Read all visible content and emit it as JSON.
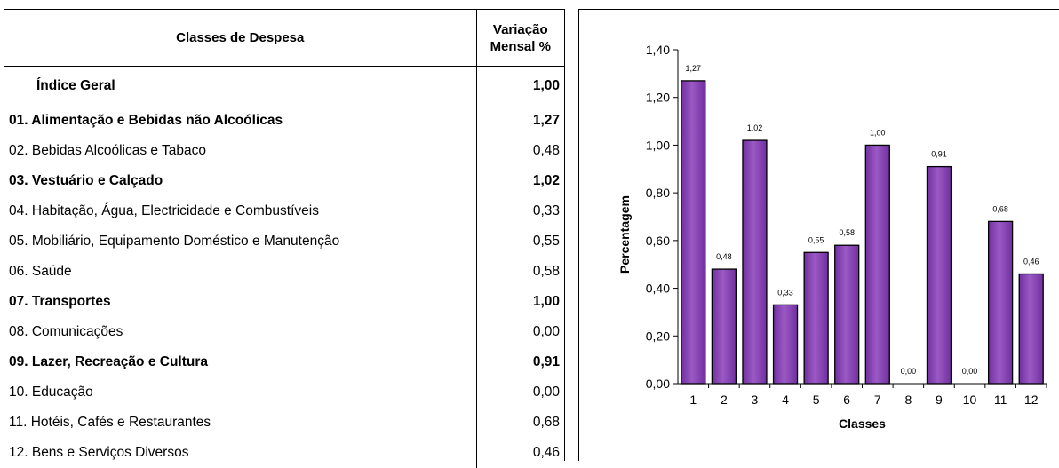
{
  "table": {
    "header_class": "Classes de Despesa",
    "header_var_line1": "Variação",
    "header_var_line2": "Mensal %",
    "rows": [
      {
        "label": "Índice Geral",
        "value": "1,00",
        "bold": true,
        "indent": true
      },
      {
        "label": "01. Alimentação e Bebidas não Alcoólicas",
        "value": "1,27",
        "bold": true,
        "indent": false
      },
      {
        "label": "02. Bebidas Alcoólicas e Tabaco",
        "value": "0,48",
        "bold": false,
        "indent": false
      },
      {
        "label": "03. Vestuário e Calçado",
        "value": "1,02",
        "bold": true,
        "indent": false
      },
      {
        "label": "04. Habitação, Água, Electricidade e Combustíveis",
        "value": "0,33",
        "bold": false,
        "indent": false
      },
      {
        "label": "05. Mobiliário, Equipamento Doméstico e Manutenção",
        "value": "0,55",
        "bold": false,
        "indent": false
      },
      {
        "label": "06. Saúde",
        "value": "0,58",
        "bold": false,
        "indent": false
      },
      {
        "label": "07. Transportes",
        "value": "1,00",
        "bold": true,
        "indent": false
      },
      {
        "label": "08. Comunicações",
        "value": "0,00",
        "bold": false,
        "indent": false
      },
      {
        "label": "09. Lazer, Recreação e Cultura",
        "value": "0,91",
        "bold": true,
        "indent": false
      },
      {
        "label": "10. Educação",
        "value": "0,00",
        "bold": false,
        "indent": false
      },
      {
        "label": "11. Hotéis, Cafés e Restaurantes",
        "value": "0,68",
        "bold": false,
        "indent": false
      },
      {
        "label": "12. Bens e Serviços Diversos",
        "value": "0,46",
        "bold": false,
        "indent": false
      }
    ]
  },
  "chart_data": {
    "type": "bar",
    "categories": [
      "1",
      "2",
      "3",
      "4",
      "5",
      "6",
      "7",
      "8",
      "9",
      "10",
      "11",
      "12"
    ],
    "values": [
      1.27,
      0.48,
      1.02,
      0.33,
      0.55,
      0.58,
      1.0,
      0.0,
      0.91,
      0.0,
      0.68,
      0.46
    ],
    "value_labels": [
      "1,27",
      "0,48",
      "1,02",
      "0,33",
      "0,55",
      "0,58",
      "1,00",
      "0,00",
      "0,91",
      "0,00",
      "0,68",
      "0,46"
    ],
    "title": "",
    "xlabel": "Classes",
    "ylabel": "Percentagem",
    "ylim": [
      0,
      1.4
    ],
    "yticks": [
      "0,00",
      "0,20",
      "0,40",
      "0,60",
      "0,80",
      "1,00",
      "1,20",
      "1,40"
    ],
    "grid": false,
    "legend": "none",
    "bar_color": "#7030A0",
    "bar_color_light": "#9B59C4"
  }
}
